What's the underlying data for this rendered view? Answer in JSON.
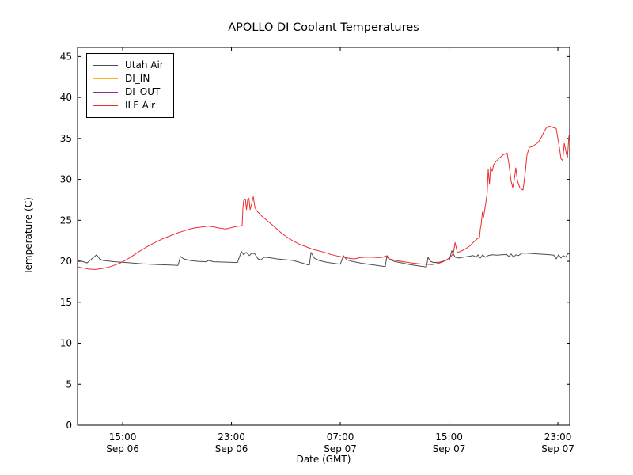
{
  "chart_data": {
    "type": "line",
    "title": "APOLLO DI Coolant Temperatures",
    "xlabel": "Date (GMT)",
    "ylabel": "Temperature (C)",
    "grid": false,
    "legend_position": "upper left",
    "ylim": [
      0,
      46.1
    ],
    "yticks": [
      0,
      5,
      10,
      15,
      20,
      25,
      30,
      35,
      40,
      45
    ],
    "x_unit": "hours since Sep 06 00:00 GMT",
    "xlim": [
      11.68,
      47.87
    ],
    "xticks": [
      {
        "t": 15,
        "time": "15:00",
        "date": "Sep 06"
      },
      {
        "t": 23,
        "time": "23:00",
        "date": "Sep 06"
      },
      {
        "t": 31,
        "time": "07:00",
        "date": "Sep 07"
      },
      {
        "t": 39,
        "time": "15:00",
        "date": "Sep 07"
      },
      {
        "t": 47,
        "time": "23:00",
        "date": "Sep 07"
      }
    ],
    "series": [
      {
        "name": "Utah Air",
        "color": "#4d4d4d",
        "points": [
          [
            11.68,
            20.1
          ],
          [
            12.03,
            20.0
          ],
          [
            12.38,
            19.8
          ],
          [
            13.08,
            20.8
          ],
          [
            13.31,
            20.3
          ],
          [
            13.55,
            20.1
          ],
          [
            14.42,
            19.95
          ],
          [
            15.29,
            19.85
          ],
          [
            16.45,
            19.7
          ],
          [
            17.62,
            19.6
          ],
          [
            18.49,
            19.55
          ],
          [
            19.07,
            19.5
          ],
          [
            19.25,
            20.6
          ],
          [
            19.48,
            20.3
          ],
          [
            19.95,
            20.1
          ],
          [
            20.53,
            20.0
          ],
          [
            21.11,
            19.95
          ],
          [
            21.34,
            20.1
          ],
          [
            21.69,
            19.95
          ],
          [
            22.56,
            19.9
          ],
          [
            23.44,
            19.85
          ],
          [
            23.73,
            21.2
          ],
          [
            23.9,
            20.8
          ],
          [
            24.08,
            21.1
          ],
          [
            24.31,
            20.7
          ],
          [
            24.48,
            21.0
          ],
          [
            24.72,
            20.9
          ],
          [
            24.95,
            20.3
          ],
          [
            25.12,
            20.15
          ],
          [
            25.41,
            20.5
          ],
          [
            25.76,
            20.45
          ],
          [
            26.34,
            20.3
          ],
          [
            26.93,
            20.2
          ],
          [
            27.51,
            20.1
          ],
          [
            28.09,
            19.85
          ],
          [
            28.56,
            19.6
          ],
          [
            28.73,
            19.55
          ],
          [
            28.85,
            21.1
          ],
          [
            29.08,
            20.4
          ],
          [
            29.43,
            20.1
          ],
          [
            29.95,
            19.9
          ],
          [
            30.53,
            19.75
          ],
          [
            31.0,
            19.65
          ],
          [
            31.23,
            20.7
          ],
          [
            31.47,
            20.2
          ],
          [
            31.87,
            20.0
          ],
          [
            32.45,
            19.8
          ],
          [
            33.04,
            19.65
          ],
          [
            33.5,
            19.55
          ],
          [
            33.68,
            19.5
          ],
          [
            34.08,
            19.4
          ],
          [
            34.31,
            19.35
          ],
          [
            34.43,
            20.7
          ],
          [
            34.66,
            20.2
          ],
          [
            34.95,
            20.0
          ],
          [
            35.54,
            19.8
          ],
          [
            36.12,
            19.6
          ],
          [
            36.7,
            19.45
          ],
          [
            37.16,
            19.35
          ],
          [
            37.34,
            19.3
          ],
          [
            37.45,
            20.5
          ],
          [
            37.63,
            20.0
          ],
          [
            37.86,
            19.85
          ],
          [
            38.33,
            19.9
          ],
          [
            38.73,
            20.1
          ],
          [
            39.03,
            20.2
          ],
          [
            39.2,
            21.3
          ],
          [
            39.44,
            20.5
          ],
          [
            39.73,
            20.4
          ],
          [
            40.02,
            20.5
          ],
          [
            40.42,
            20.6
          ],
          [
            40.77,
            20.7
          ],
          [
            41.01,
            20.5
          ],
          [
            41.12,
            20.8
          ],
          [
            41.3,
            20.4
          ],
          [
            41.47,
            20.8
          ],
          [
            41.65,
            20.5
          ],
          [
            41.88,
            20.7
          ],
          [
            42.17,
            20.8
          ],
          [
            42.52,
            20.75
          ],
          [
            42.87,
            20.8
          ],
          [
            43.22,
            20.85
          ],
          [
            43.39,
            20.6
          ],
          [
            43.56,
            20.9
          ],
          [
            43.74,
            20.5
          ],
          [
            43.91,
            20.8
          ],
          [
            44.09,
            20.7
          ],
          [
            44.38,
            21.0
          ],
          [
            44.73,
            21.0
          ],
          [
            45.07,
            20.95
          ],
          [
            45.54,
            20.9
          ],
          [
            46.0,
            20.85
          ],
          [
            46.41,
            20.8
          ],
          [
            46.7,
            20.75
          ],
          [
            46.88,
            20.3
          ],
          [
            47.05,
            20.8
          ],
          [
            47.23,
            20.4
          ],
          [
            47.4,
            20.7
          ],
          [
            47.58,
            20.5
          ],
          [
            47.75,
            21.0
          ],
          [
            47.87,
            20.8
          ]
        ]
      },
      {
        "name": "DI_IN",
        "color": "#ffae2a",
        "points": []
      },
      {
        "name": "DI_OUT",
        "color": "#8b2f97",
        "points": []
      },
      {
        "name": "ILE Air",
        "color": "#ee2c2c",
        "points": [
          [
            11.68,
            19.35
          ],
          [
            12.03,
            19.2
          ],
          [
            12.5,
            19.05
          ],
          [
            12.96,
            19.0
          ],
          [
            13.43,
            19.1
          ],
          [
            13.9,
            19.25
          ],
          [
            14.36,
            19.5
          ],
          [
            14.83,
            19.8
          ],
          [
            15.29,
            20.2
          ],
          [
            15.76,
            20.7
          ],
          [
            16.22,
            21.2
          ],
          [
            16.69,
            21.7
          ],
          [
            17.15,
            22.1
          ],
          [
            17.62,
            22.5
          ],
          [
            18.08,
            22.85
          ],
          [
            18.55,
            23.15
          ],
          [
            19.01,
            23.45
          ],
          [
            19.48,
            23.7
          ],
          [
            19.95,
            23.95
          ],
          [
            20.41,
            24.1
          ],
          [
            20.88,
            24.2
          ],
          [
            21.28,
            24.3
          ],
          [
            21.69,
            24.2
          ],
          [
            22.15,
            24.05
          ],
          [
            22.56,
            23.95
          ],
          [
            22.85,
            24.05
          ],
          [
            23.2,
            24.2
          ],
          [
            23.55,
            24.3
          ],
          [
            23.78,
            24.35
          ],
          [
            23.84,
            26.5
          ],
          [
            23.9,
            27.4
          ],
          [
            24.02,
            27.6
          ],
          [
            24.1,
            26.3
          ],
          [
            24.19,
            27.5
          ],
          [
            24.28,
            27.7
          ],
          [
            24.37,
            26.3
          ],
          [
            24.48,
            27.0
          ],
          [
            24.6,
            27.9
          ],
          [
            24.72,
            26.6
          ],
          [
            24.83,
            26.2
          ],
          [
            25.01,
            25.9
          ],
          [
            25.24,
            25.5
          ],
          [
            25.53,
            25.1
          ],
          [
            25.88,
            24.6
          ],
          [
            26.23,
            24.1
          ],
          [
            26.63,
            23.5
          ],
          [
            27.04,
            23.0
          ],
          [
            27.51,
            22.5
          ],
          [
            27.97,
            22.1
          ],
          [
            28.44,
            21.8
          ],
          [
            28.91,
            21.5
          ],
          [
            29.37,
            21.3
          ],
          [
            29.84,
            21.1
          ],
          [
            30.3,
            20.85
          ],
          [
            30.77,
            20.65
          ],
          [
            31.23,
            20.5
          ],
          [
            31.7,
            20.35
          ],
          [
            32.05,
            20.3
          ],
          [
            32.45,
            20.45
          ],
          [
            32.86,
            20.5
          ],
          [
            33.33,
            20.5
          ],
          [
            33.79,
            20.45
          ],
          [
            34.14,
            20.5
          ],
          [
            34.31,
            20.65
          ],
          [
            34.6,
            20.3
          ],
          [
            35.07,
            20.1
          ],
          [
            35.65,
            19.95
          ],
          [
            36.23,
            19.8
          ],
          [
            36.81,
            19.7
          ],
          [
            37.28,
            19.65
          ],
          [
            37.74,
            19.6
          ],
          [
            38.21,
            19.75
          ],
          [
            38.56,
            19.95
          ],
          [
            38.91,
            20.3
          ],
          [
            39.14,
            20.6
          ],
          [
            39.32,
            21.0
          ],
          [
            39.44,
            22.3
          ],
          [
            39.61,
            21.1
          ],
          [
            39.84,
            21.2
          ],
          [
            40.19,
            21.5
          ],
          [
            40.54,
            21.9
          ],
          [
            40.83,
            22.4
          ],
          [
            41.07,
            22.75
          ],
          [
            41.24,
            22.9
          ],
          [
            41.3,
            24.0
          ],
          [
            41.36,
            24.5
          ],
          [
            41.45,
            26.0
          ],
          [
            41.53,
            25.3
          ],
          [
            41.62,
            26.3
          ],
          [
            41.71,
            27.2
          ],
          [
            41.8,
            28.3
          ],
          [
            41.88,
            31.2
          ],
          [
            41.97,
            29.4
          ],
          [
            42.05,
            31.5
          ],
          [
            42.17,
            31.0
          ],
          [
            42.28,
            31.8
          ],
          [
            42.46,
            32.2
          ],
          [
            42.69,
            32.6
          ],
          [
            42.98,
            33.0
          ],
          [
            43.27,
            33.2
          ],
          [
            43.39,
            32.0
          ],
          [
            43.56,
            29.8
          ],
          [
            43.68,
            29.0
          ],
          [
            43.8,
            30.0
          ],
          [
            43.91,
            31.4
          ],
          [
            44.03,
            29.8
          ],
          [
            44.2,
            29.0
          ],
          [
            44.32,
            28.8
          ],
          [
            44.44,
            28.7
          ],
          [
            44.61,
            31.0
          ],
          [
            44.73,
            33.0
          ],
          [
            44.9,
            33.9
          ],
          [
            45.13,
            34.0
          ],
          [
            45.37,
            34.3
          ],
          [
            45.54,
            34.5
          ],
          [
            45.77,
            35.1
          ],
          [
            45.95,
            35.7
          ],
          [
            46.12,
            36.2
          ],
          [
            46.3,
            36.5
          ],
          [
            46.53,
            36.4
          ],
          [
            46.7,
            36.3
          ],
          [
            46.88,
            36.2
          ],
          [
            47.0,
            35.0
          ],
          [
            47.12,
            33.8
          ],
          [
            47.23,
            32.5
          ],
          [
            47.35,
            32.3
          ],
          [
            47.47,
            34.4
          ],
          [
            47.58,
            33.5
          ],
          [
            47.7,
            32.6
          ],
          [
            47.81,
            35.3
          ],
          [
            47.87,
            35.0
          ]
        ]
      }
    ]
  }
}
